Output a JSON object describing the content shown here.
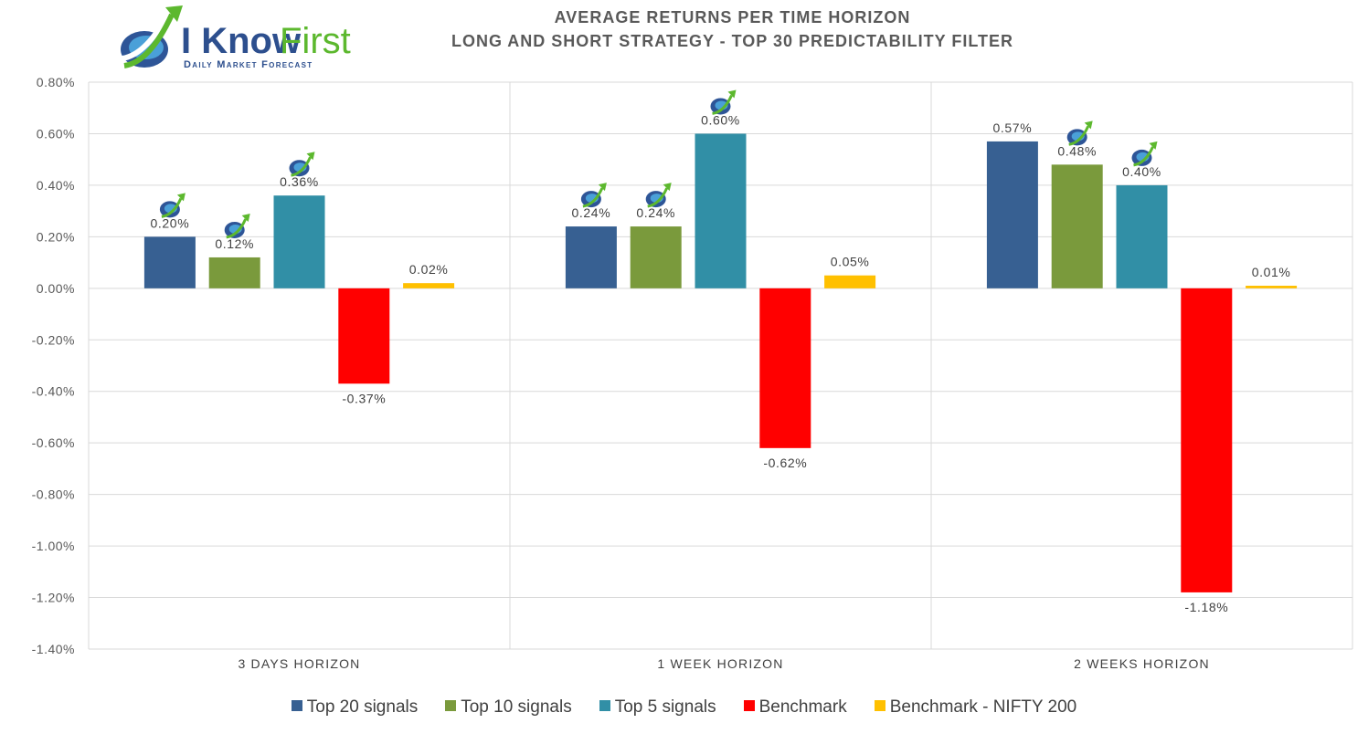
{
  "logo": {
    "name_part1": "I Know",
    "name_part2": "First",
    "tagline": "Daily Market Forecast",
    "icon": "rising-arrow-globe-icon"
  },
  "chart_data": {
    "type": "bar",
    "title": "AVERAGE RETURNS PER TIME HORIZON",
    "subtitle": "LONG AND SHORT STRATEGY - TOP 30 PREDICTABILITY FILTER",
    "categories": [
      "3 DAYS HORIZON",
      "1 WEEK HORIZON",
      "2 WEEKS HORIZON"
    ],
    "series": [
      {
        "name": "Top 20 signals",
        "color": "#376092",
        "values": [
          0.2,
          0.24,
          0.57
        ],
        "labels": [
          "0.20%",
          "0.24%",
          "0.57%"
        ],
        "badge": [
          true,
          true,
          false
        ]
      },
      {
        "name": "Top 10 signals",
        "color": "#7a9a3c",
        "values": [
          0.12,
          0.24,
          0.48
        ],
        "labels": [
          "0.12%",
          "0.24%",
          "0.48%"
        ],
        "badge": [
          true,
          true,
          true
        ]
      },
      {
        "name": "Top 5 signals",
        "color": "#318fa6",
        "values": [
          0.36,
          0.6,
          0.4
        ],
        "labels": [
          "0.36%",
          "0.60%",
          "0.40%"
        ],
        "badge": [
          true,
          true,
          true
        ]
      },
      {
        "name": "Benchmark",
        "color": "#ff0000",
        "values": [
          -0.37,
          -0.62,
          -1.18
        ],
        "labels": [
          "-0.37%",
          "-0.62%",
          "-1.18%"
        ],
        "badge": [
          false,
          false,
          false
        ]
      },
      {
        "name": "Benchmark - NIFTY 200",
        "color": "#ffc000",
        "values": [
          0.02,
          0.05,
          0.01
        ],
        "labels": [
          "0.02%",
          "0.05%",
          "0.01%"
        ],
        "badge": [
          false,
          false,
          false
        ]
      }
    ],
    "ylim": [
      -1.4,
      0.8
    ],
    "yticks": [
      0.8,
      0.6,
      0.4,
      0.2,
      0.0,
      -0.2,
      -0.4,
      -0.6,
      -0.8,
      -1.0,
      -1.2,
      -1.4
    ],
    "ytick_labels": [
      "0.80%",
      "0.60%",
      "0.40%",
      "0.20%",
      "0.00%",
      "-0.20%",
      "-0.40%",
      "-0.60%",
      "-0.80%",
      "-1.00%",
      "-1.20%",
      "-1.40%"
    ],
    "unit": "%",
    "grid": true,
    "legend_position": "bottom",
    "badge_icon": "i-know-first-logo-icon"
  }
}
